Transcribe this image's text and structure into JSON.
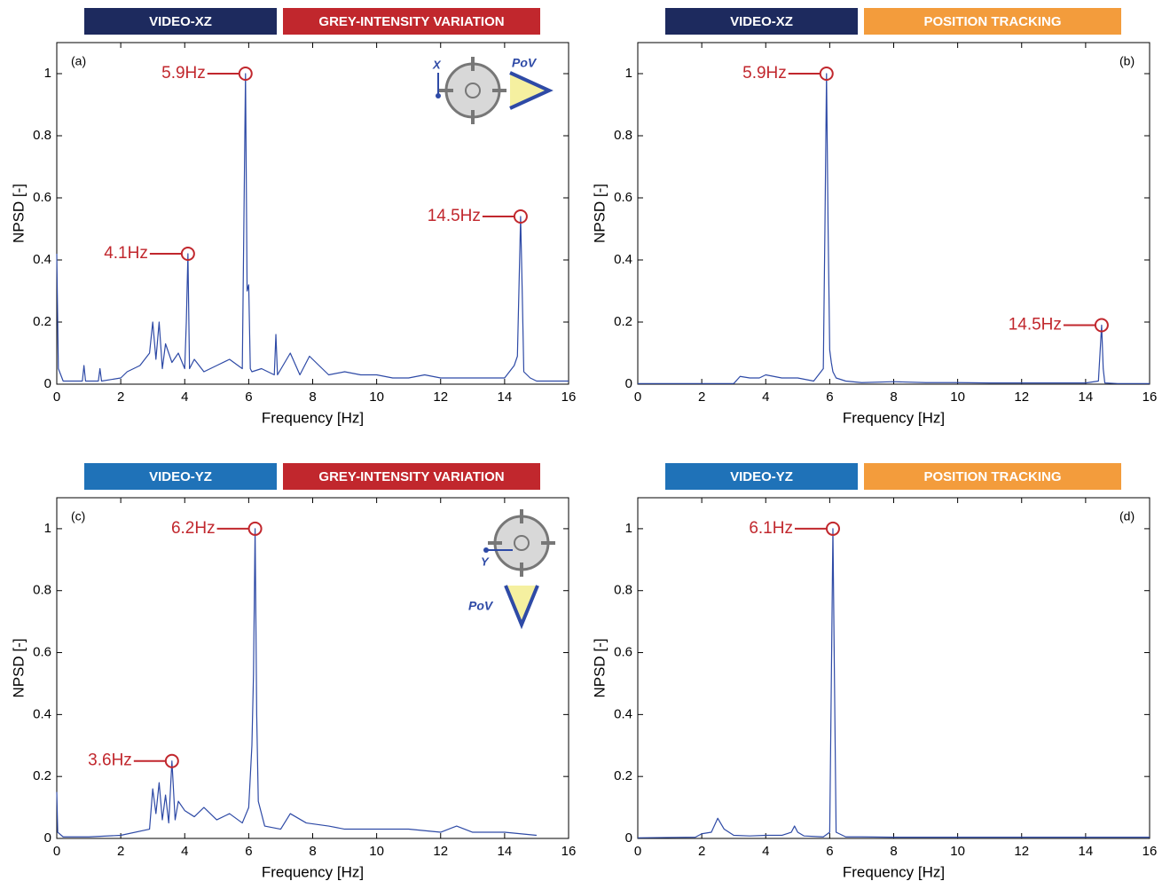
{
  "chart_data": [
    {
      "type": "line",
      "panel_label": "(a)",
      "xlabel": "Frequency [Hz]",
      "ylabel": "NPSD [-]",
      "badges": [
        {
          "text": "VIDEO-XZ",
          "color": "#1d2a5e"
        },
        {
          "text": "GREY-INTENSITY VARIATION",
          "color": "#c1272d"
        }
      ],
      "inset": {
        "axis_label": "X",
        "pov_label": "PoV",
        "view": "side"
      },
      "xlim": [
        0,
        16
      ],
      "ylim": [
        0,
        1.1
      ],
      "xticks": [
        0,
        2,
        4,
        6,
        8,
        10,
        12,
        14,
        16
      ],
      "yticks": [
        0,
        0.2,
        0.4,
        0.6,
        0.8,
        1
      ],
      "grid": false,
      "series": [
        {
          "color": "#2e4aa6",
          "x": [
            0,
            0.05,
            0.2,
            0.5,
            0.8,
            0.85,
            0.9,
            1.3,
            1.35,
            1.4,
            2,
            2.2,
            2.6,
            2.9,
            3.0,
            3.1,
            3.2,
            3.3,
            3.4,
            3.6,
            3.8,
            4.0,
            4.05,
            4.1,
            4.15,
            4.3,
            4.6,
            5.0,
            5.4,
            5.8,
            5.9,
            5.95,
            6.0,
            6.05,
            6.1,
            6.4,
            6.8,
            6.85,
            6.9,
            7.3,
            7.6,
            7.9,
            8.2,
            8.5,
            9.0,
            9.5,
            10,
            10.5,
            11,
            11.5,
            12,
            12.5,
            13,
            13.5,
            14,
            14.3,
            14.4,
            14.5,
            14.55,
            14.6,
            14.8,
            15,
            15.5,
            16
          ],
          "values": [
            0.42,
            0.05,
            0.01,
            0.01,
            0.01,
            0.06,
            0.01,
            0.01,
            0.05,
            0.01,
            0.02,
            0.04,
            0.06,
            0.1,
            0.2,
            0.08,
            0.2,
            0.05,
            0.13,
            0.07,
            0.1,
            0.05,
            0.2,
            0.42,
            0.05,
            0.08,
            0.04,
            0.06,
            0.08,
            0.05,
            1,
            0.3,
            0.32,
            0.05,
            0.04,
            0.05,
            0.03,
            0.16,
            0.03,
            0.1,
            0.03,
            0.09,
            0.06,
            0.03,
            0.04,
            0.03,
            0.03,
            0.02,
            0.02,
            0.03,
            0.02,
            0.02,
            0.02,
            0.02,
            0.02,
            0.06,
            0.09,
            0.54,
            0.3,
            0.04,
            0.02,
            0.01,
            0.01,
            0.01
          ]
        }
      ],
      "annotations": [
        {
          "text": "5.9Hz",
          "x": 5.9,
          "y": 1
        },
        {
          "text": "4.1Hz",
          "x": 4.1,
          "y": 0.42
        },
        {
          "text": "14.5Hz",
          "x": 14.5,
          "y": 0.54
        }
      ]
    },
    {
      "type": "line",
      "panel_label": "(b)",
      "xlabel": "Frequency [Hz]",
      "ylabel": "NPSD [-]",
      "badges": [
        {
          "text": "VIDEO-XZ",
          "color": "#1d2a5e"
        },
        {
          "text": "POSITION TRACKING",
          "color": "#f39c3c"
        }
      ],
      "xlim": [
        0,
        16
      ],
      "ylim": [
        0,
        1.1
      ],
      "xticks": [
        0,
        2,
        4,
        6,
        8,
        10,
        12,
        14,
        16
      ],
      "yticks": [
        0,
        0.2,
        0.4,
        0.6,
        0.8,
        1
      ],
      "grid": false,
      "series": [
        {
          "color": "#2e4aa6",
          "x": [
            0,
            3,
            3.2,
            3.5,
            3.8,
            4.0,
            4.5,
            5.0,
            5.5,
            5.8,
            5.85,
            5.9,
            5.95,
            6.0,
            6.05,
            6.1,
            6.2,
            6.5,
            7,
            8,
            9,
            10,
            11,
            12,
            13,
            14,
            14.4,
            14.45,
            14.5,
            14.55,
            14.6,
            15,
            16
          ],
          "values": [
            0.002,
            0.002,
            0.025,
            0.02,
            0.02,
            0.03,
            0.02,
            0.02,
            0.01,
            0.05,
            0.5,
            1,
            0.5,
            0.11,
            0.07,
            0.04,
            0.02,
            0.01,
            0.005,
            0.008,
            0.005,
            0.005,
            0.004,
            0.004,
            0.004,
            0.004,
            0.01,
            0.1,
            0.19,
            0.05,
            0.004,
            0.002,
            0.002
          ]
        }
      ],
      "annotations": [
        {
          "text": "5.9Hz",
          "x": 5.9,
          "y": 1
        },
        {
          "text": "14.5Hz",
          "x": 14.5,
          "y": 0.19
        }
      ]
    },
    {
      "type": "line",
      "panel_label": "(c)",
      "xlabel": "Frequency [Hz]",
      "ylabel": "NPSD [-]",
      "badges": [
        {
          "text": "VIDEO-YZ",
          "color": "#1f72b8"
        },
        {
          "text": "GREY-INTENSITY VARIATION",
          "color": "#c1272d"
        }
      ],
      "inset": {
        "axis_label": "Y",
        "pov_label": "PoV",
        "view": "top"
      },
      "xlim": [
        0,
        16
      ],
      "ylim": [
        0,
        1.1
      ],
      "xticks": [
        0,
        2,
        4,
        6,
        8,
        10,
        12,
        14,
        16
      ],
      "yticks": [
        0,
        0.2,
        0.4,
        0.6,
        0.8,
        1
      ],
      "grid": false,
      "series": [
        {
          "color": "#2e4aa6",
          "x": [
            0,
            0.03,
            0.2,
            1,
            2,
            2.9,
            3.0,
            3.1,
            3.2,
            3.3,
            3.4,
            3.5,
            3.6,
            3.7,
            3.8,
            4.0,
            4.3,
            4.6,
            5.0,
            5.4,
            5.8,
            6.0,
            6.1,
            6.15,
            6.2,
            6.25,
            6.3,
            6.5,
            7,
            7.3,
            7.8,
            8.5,
            9,
            10,
            11,
            12,
            12.5,
            13,
            14,
            15
          ],
          "values": [
            0.15,
            0.02,
            0.005,
            0.005,
            0.01,
            0.03,
            0.16,
            0.08,
            0.18,
            0.06,
            0.14,
            0.05,
            0.25,
            0.06,
            0.12,
            0.09,
            0.07,
            0.1,
            0.06,
            0.08,
            0.05,
            0.1,
            0.3,
            0.53,
            1,
            0.4,
            0.12,
            0.04,
            0.03,
            0.08,
            0.05,
            0.04,
            0.03,
            0.03,
            0.03,
            0.02,
            0.04,
            0.02,
            0.02,
            0.01
          ]
        }
      ],
      "annotations": [
        {
          "text": "6.2Hz",
          "x": 6.2,
          "y": 1
        },
        {
          "text": "3.6Hz",
          "x": 3.6,
          "y": 0.25
        }
      ]
    },
    {
      "type": "line",
      "panel_label": "(d)",
      "xlabel": "Frequency [Hz]",
      "ylabel": "NPSD [-]",
      "badges": [
        {
          "text": "VIDEO-YZ",
          "color": "#1f72b8"
        },
        {
          "text": "POSITION TRACKING",
          "color": "#f39c3c"
        }
      ],
      "xlim": [
        0,
        16
      ],
      "ylim": [
        0,
        1.1
      ],
      "xticks": [
        0,
        2,
        4,
        6,
        8,
        10,
        12,
        14,
        16
      ],
      "yticks": [
        0,
        0.2,
        0.4,
        0.6,
        0.8,
        1
      ],
      "grid": false,
      "series": [
        {
          "color": "#2e4aa6",
          "x": [
            0,
            1.8,
            2.0,
            2.3,
            2.5,
            2.7,
            3.0,
            3.5,
            4.0,
            4.5,
            4.8,
            4.9,
            5.0,
            5.2,
            5.8,
            6.0,
            6.05,
            6.1,
            6.15,
            6.2,
            6.5,
            7,
            8,
            9,
            10,
            11,
            12,
            13,
            14,
            15,
            16
          ],
          "values": [
            0.002,
            0.004,
            0.015,
            0.02,
            0.065,
            0.03,
            0.01,
            0.008,
            0.01,
            0.01,
            0.02,
            0.04,
            0.02,
            0.008,
            0.005,
            0.02,
            0.5,
            1,
            0.5,
            0.02,
            0.005,
            0.005,
            0.004,
            0.004,
            0.004,
            0.004,
            0.004,
            0.004,
            0.004,
            0.004,
            0.004
          ]
        }
      ],
      "annotations": [
        {
          "text": "6.1Hz",
          "x": 6.1,
          "y": 1
        }
      ]
    }
  ]
}
